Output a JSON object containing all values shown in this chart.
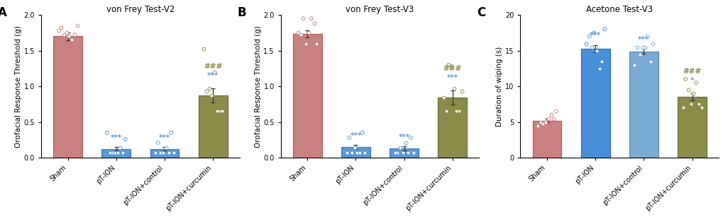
{
  "panels": [
    {
      "label": "A",
      "title": "von Frey Test-V2",
      "ylabel": "Orofacial Response Threshold (g)",
      "ylim": [
        0,
        2.0
      ],
      "yticks": [
        0.0,
        0.5,
        1.0,
        1.5,
        2.0
      ],
      "categories": [
        "Sham",
        "pT-ION",
        "pT-ION+control",
        "pT-ION+curcumin"
      ],
      "bar_means": [
        1.7,
        0.12,
        0.12,
        0.87
      ],
      "bar_sems": [
        0.055,
        0.025,
        0.025,
        0.1
      ],
      "bar_colors": [
        "#c98080",
        "#5b9bd5",
        "#5b9bd5",
        "#8b8c4a"
      ],
      "bar_edge_colors": [
        "#b06060",
        "#3a7abf",
        "#3a7abf",
        "#6e6e30"
      ],
      "dot_colors": [
        "#c98080",
        "#5b9bd5",
        "#5b9bd5",
        "#8b8c4a"
      ],
      "dot_data": [
        [
          1.72,
          1.72,
          1.82,
          1.85,
          1.75,
          1.78,
          1.65,
          1.7
        ],
        [
          0.07,
          0.07,
          0.07,
          0.26,
          0.35,
          0.07,
          0.14,
          0.07
        ],
        [
          0.07,
          0.07,
          0.07,
          0.21,
          0.35,
          0.14,
          0.07,
          0.07
        ],
        [
          0.87,
          0.93,
          0.97,
          1.52,
          1.2,
          0.65,
          0.65,
          0.65
        ]
      ],
      "sig_blue": [
        "",
        "***",
        "***",
        "***"
      ],
      "sig_dark": [
        "",
        "",
        "",
        "###"
      ],
      "blue_color": "#5b9bd5",
      "dark_color": "#8b8c4a"
    },
    {
      "label": "B",
      "title": "von Frey Test-V3",
      "ylabel": "Orofacial Response Threshold (g)",
      "ylim": [
        0,
        2.0
      ],
      "yticks": [
        0.0,
        0.5,
        1.0,
        1.5,
        2.0
      ],
      "categories": [
        "Sham",
        "pT-ION",
        "pT-ION+control",
        "pT-ION+curcumin"
      ],
      "bar_means": [
        1.73,
        0.15,
        0.13,
        0.84
      ],
      "bar_sems": [
        0.05,
        0.028,
        0.028,
        0.1
      ],
      "bar_colors": [
        "#c98080",
        "#5b9bd5",
        "#5b9bd5",
        "#8b8c4a"
      ],
      "bar_edge_colors": [
        "#b06060",
        "#3a7abf",
        "#3a7abf",
        "#6e6e30"
      ],
      "dot_colors": [
        "#c98080",
        "#5b9bd5",
        "#5b9bd5",
        "#8b8c4a"
      ],
      "dot_data": [
        [
          1.72,
          1.75,
          1.95,
          1.95,
          1.88,
          1.6,
          1.6,
          1.75
        ],
        [
          0.07,
          0.07,
          0.07,
          0.35,
          0.28,
          0.07,
          0.14,
          0.07
        ],
        [
          0.07,
          0.07,
          0.07,
          0.21,
          0.28,
          0.14,
          0.07,
          0.07
        ],
        [
          0.84,
          0.93,
          0.97,
          1.3,
          1.28,
          0.65,
          0.65,
          0.65
        ]
      ],
      "sig_blue": [
        "",
        "***",
        "***",
        "***"
      ],
      "sig_dark": [
        "",
        "",
        "",
        "###"
      ],
      "blue_color": "#5b9bd5",
      "dark_color": "#8b8c4a"
    },
    {
      "label": "C",
      "title": "Acetone Test-V3",
      "ylabel": "Duration of wiping (s)",
      "ylim": [
        0,
        20
      ],
      "yticks": [
        0,
        5,
        10,
        15,
        20
      ],
      "categories": [
        "Sham",
        "pT-ION",
        "pT-ION+control",
        "pT-ION+curcumin"
      ],
      "bar_means": [
        5.2,
        15.3,
        14.9,
        8.5
      ],
      "bar_sems": [
        0.28,
        0.5,
        0.38,
        0.5
      ],
      "bar_colors": [
        "#c98080",
        "#4a90d9",
        "#7aabd4",
        "#8b8c4a"
      ],
      "bar_edge_colors": [
        "#b06060",
        "#2a70c0",
        "#5a8bb4",
        "#6e6e30"
      ],
      "dot_colors": [
        "#c98080",
        "#4a90d9",
        "#7aabd4",
        "#8b8c4a"
      ],
      "dot_data": [
        [
          5.0,
          5.5,
          6.0,
          6.5,
          5.5,
          4.5,
          5.0,
          4.8
        ],
        [
          16.0,
          17.0,
          18.0,
          17.5,
          13.5,
          12.5,
          15.0,
          15.5
        ],
        [
          15.5,
          16.0,
          17.0,
          14.5,
          13.0,
          13.5,
          15.5,
          15.5
        ],
        [
          10.5,
          11.0,
          9.5,
          9.0,
          7.5,
          7.5,
          7.0,
          7.0
        ]
      ],
      "sig_blue": [
        "",
        "***",
        "***",
        "*"
      ],
      "sig_dark": [
        "",
        "",
        "",
        "###"
      ],
      "blue_color": "#5b9bd5",
      "dark_color": "#8b8c4a"
    }
  ],
  "fig_width": 10.2,
  "fig_height": 3.07,
  "dpi": 100,
  "bg_color": "#ffffff",
  "bar_width": 0.6,
  "sig_fontsize": 7.5,
  "title_fontsize": 8.5,
  "label_fontsize": 7.5,
  "tick_fontsize": 7.0,
  "panel_label_fontsize": 12
}
